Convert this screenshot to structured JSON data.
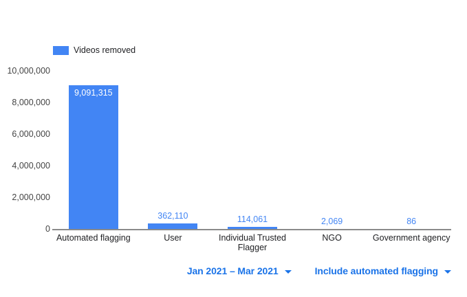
{
  "legend": {
    "label": "Videos removed"
  },
  "chart_data": {
    "type": "bar",
    "title": "",
    "series_name": "Videos removed",
    "categories": [
      "Automated flagging",
      "User",
      "Individual Trusted Flagger",
      "NGO",
      "Government agency"
    ],
    "values": [
      9091315,
      362110,
      114061,
      2069,
      86
    ],
    "value_labels": [
      "9,091,315",
      "362,110",
      "114,061",
      "2,069",
      "86"
    ],
    "yticks": [
      "10,000,000",
      "8,000,000",
      "6,000,000",
      "4,000,000",
      "2,000,000",
      "0"
    ],
    "ylim": [
      0,
      10000000
    ],
    "xlabel": "",
    "ylabel": "",
    "grid": "off",
    "legend_position": "top-left",
    "bar_color": "#4285f4",
    "value_label_color": "#4285f4",
    "inside_value_label_color": "#ffffff",
    "axis_line_color": "#8a8a8a"
  },
  "controls": {
    "date_range": {
      "label": "Jan 2021 – Mar 2021",
      "icon": "dropdown-arrow"
    },
    "flagging_filter": {
      "label": "Include automated flagging",
      "icon": "dropdown-arrow"
    }
  },
  "colors": {
    "accent_blue": "#4285f4",
    "link_blue": "#1a73e8"
  }
}
